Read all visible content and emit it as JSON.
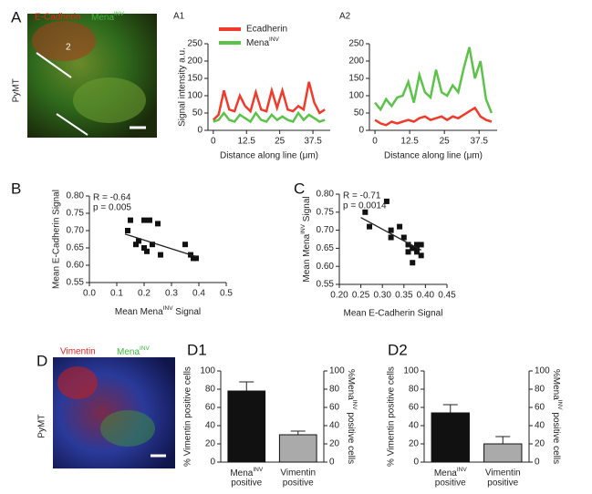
{
  "images": [
    {
      "panel": "A",
      "channels": [
        {
          "text": "E-Cadherin",
          "color": "#e8231f"
        },
        {
          "text": [
            "Mena",
            "INV"
          ],
          "color": "#3cb83c"
        }
      ],
      "side_label": "PyMT",
      "line_label": "2"
    },
    {
      "panel": "D",
      "channels": [
        {
          "text": "Vimentin",
          "color": "#e8231f"
        },
        {
          "text": [
            "Mena",
            "INV"
          ],
          "color": "#3cb83c"
        }
      ],
      "side_label": "PyMT"
    }
  ],
  "chart_data": [
    {
      "type": "line",
      "panel": "A1",
      "y_label": "Signal intensity a.u.",
      "x_label": "Distance along line (μm)",
      "x": [
        0,
        2,
        4,
        6,
        8,
        10,
        12,
        14,
        16,
        18,
        20,
        22,
        24,
        26,
        28,
        30,
        32,
        34,
        36,
        38,
        40,
        42
      ],
      "xlim": [
        -2,
        44
      ],
      "xticks": [
        0,
        12.5,
        25,
        37.5
      ],
      "ylim": [
        0,
        250
      ],
      "yticks": [
        0,
        50,
        100,
        150,
        200,
        250
      ],
      "legend": true,
      "series": [
        {
          "name": "Ecadherin",
          "color": "#f03a2a",
          "values": [
            30,
            45,
            115,
            60,
            55,
            100,
            70,
            55,
            110,
            60,
            55,
            115,
            65,
            115,
            60,
            55,
            70,
            60,
            140,
            80,
            50,
            60
          ]
        },
        {
          "name": [
            "Mena",
            "INV"
          ],
          "color": "#5cc34a",
          "values": [
            25,
            30,
            50,
            30,
            25,
            45,
            35,
            25,
            50,
            30,
            25,
            45,
            30,
            40,
            30,
            25,
            50,
            30,
            45,
            35,
            25,
            30
          ]
        }
      ]
    },
    {
      "type": "line",
      "panel": "A2",
      "x_label": "Distance along line (μm)",
      "x": [
        0,
        2,
        4,
        6,
        8,
        10,
        12,
        14,
        16,
        18,
        20,
        22,
        24,
        26,
        28,
        30,
        32,
        34,
        36,
        38,
        40,
        42
      ],
      "xlim": [
        -2,
        44
      ],
      "xticks": [
        0,
        12.5,
        25,
        37.5
      ],
      "ylim": [
        0,
        250
      ],
      "yticks": [
        0,
        50,
        100,
        150,
        200,
        250
      ],
      "legend": false,
      "series": [
        {
          "name": "Ecadherin",
          "color": "#f03a2a",
          "values": [
            30,
            20,
            15,
            25,
            20,
            25,
            30,
            25,
            35,
            40,
            30,
            35,
            40,
            30,
            40,
            35,
            45,
            55,
            65,
            40,
            30,
            25
          ]
        },
        {
          "name": [
            "Mena",
            "INV"
          ],
          "color": "#5cc34a",
          "values": [
            80,
            60,
            90,
            70,
            95,
            100,
            140,
            80,
            160,
            110,
            95,
            175,
            110,
            100,
            130,
            110,
            180,
            240,
            150,
            200,
            90,
            50
          ]
        }
      ]
    },
    {
      "type": "scatter",
      "panel": "B",
      "y_label": "Mean E-Cadherin Signal",
      "x_label": [
        "Mean Mena",
        "INV",
        " Signal"
      ],
      "annotations": [
        "R = -0.64",
        "p = 0.005"
      ],
      "x": [
        0.14,
        0.15,
        0.17,
        0.18,
        0.2,
        0.22,
        0.2,
        0.21,
        0.23,
        0.25,
        0.26,
        0.35,
        0.37,
        0.38,
        0.39
      ],
      "values": [
        0.7,
        0.73,
        0.66,
        0.67,
        0.73,
        0.73,
        0.65,
        0.64,
        0.66,
        0.72,
        0.63,
        0.66,
        0.63,
        0.62,
        0.62
      ],
      "fit": {
        "x": [
          0.13,
          0.39
        ],
        "y": [
          0.69,
          0.625
        ]
      },
      "xlim": [
        0,
        0.5
      ],
      "xticks": [
        {
          "value": 0,
          "label": "0.0"
        },
        0.1,
        0.2,
        0.3,
        0.4,
        0.5
      ],
      "ylim": [
        0.55,
        0.8
      ],
      "yticks": [
        0.55,
        {
          "value": 0.6,
          "label": "0.60"
        },
        0.65,
        {
          "value": 0.7,
          "label": "0.70"
        },
        0.75,
        {
          "value": 0.8,
          "label": "0.80"
        }
      ]
    },
    {
      "type": "scatter",
      "panel": "C",
      "y_label": [
        "Mean Mena",
        "INV",
        " Signal"
      ],
      "x_label": "Mean E-Cadherin Signal",
      "annotations": [
        "R = -0.71",
        "p = 0.0014"
      ],
      "x": [
        0.26,
        0.27,
        0.31,
        0.32,
        0.32,
        0.34,
        0.35,
        0.36,
        0.37,
        0.37,
        0.38,
        0.38,
        0.39,
        0.39,
        0.36,
        0.38
      ],
      "values": [
        0.75,
        0.71,
        0.78,
        0.7,
        0.68,
        0.71,
        0.68,
        0.66,
        0.65,
        0.61,
        0.64,
        0.66,
        0.66,
        0.63,
        0.64,
        0.65
      ],
      "fit": {
        "x": [
          0.25,
          0.39
        ],
        "y": [
          0.735,
          0.645
        ]
      },
      "xlim": [
        0.2,
        0.45
      ],
      "xticks": [
        {
          "value": 0.2,
          "label": "0.20"
        },
        0.25,
        {
          "value": 0.3,
          "label": "0.30"
        },
        0.35,
        {
          "value": 0.4,
          "label": "0.40"
        },
        0.45
      ],
      "ylim": [
        0.55,
        0.8
      ],
      "yticks": [
        0.55,
        {
          "value": 0.6,
          "label": "0.60"
        },
        0.65,
        {
          "value": 0.7,
          "label": "0.70"
        },
        0.75,
        {
          "value": 0.8,
          "label": "0.80"
        }
      ]
    },
    {
      "type": "bar",
      "panel": "D1",
      "y_label": "% Vimentin positive cells",
      "y2_label": [
        "%Mena",
        "INV",
        " positive cells"
      ],
      "categories": [
        [
          [
            "Mena",
            "INV"
          ],
          "positive"
        ],
        [
          "Vimentin",
          "positive"
        ]
      ],
      "values": [
        78,
        30
      ],
      "errors": [
        10,
        4
      ],
      "colors": [
        "#111111",
        "#aaaaaa"
      ],
      "ylim": [
        0,
        100
      ],
      "yticks": [
        0,
        20,
        40,
        60,
        80,
        100
      ],
      "y2lim": [
        0,
        100
      ],
      "y2ticks": [
        0,
        20,
        40,
        60,
        80,
        100
      ]
    },
    {
      "type": "bar",
      "panel": "D2",
      "y_label": "% Vimentin positive cells",
      "y2_label": [
        "%Mena",
        "INV",
        " positive cells"
      ],
      "categories": [
        [
          [
            "Mena",
            "INV"
          ],
          "positive"
        ],
        [
          "Vimentin",
          "positive"
        ]
      ],
      "values": [
        54,
        20
      ],
      "errors": [
        9,
        8
      ],
      "colors": [
        "#111111",
        "#aaaaaa"
      ],
      "ylim": [
        0,
        100
      ],
      "yticks": [
        0,
        20,
        40,
        60,
        80,
        100
      ],
      "y2lim": [
        0,
        100
      ],
      "y2ticks": [
        0,
        20,
        40,
        60,
        80,
        100
      ]
    }
  ]
}
